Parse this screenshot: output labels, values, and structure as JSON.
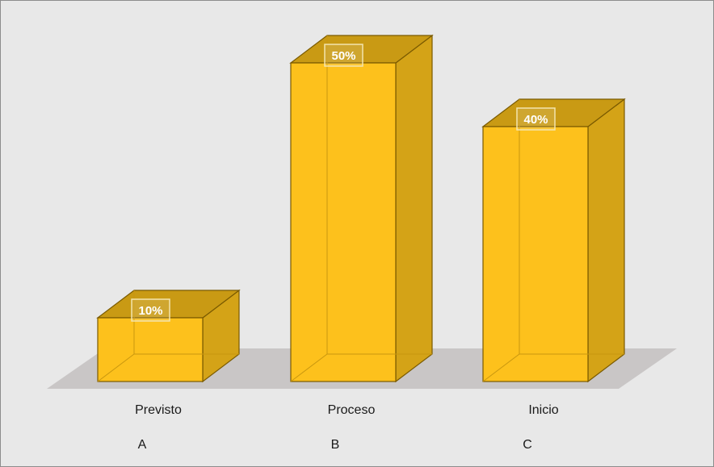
{
  "chart_data": {
    "type": "bar",
    "style": "3d-column",
    "categories": [
      "Previsto",
      "Proceso",
      "Inicio"
    ],
    "sub_labels": [
      "A",
      "B",
      "C"
    ],
    "values": [
      10,
      50,
      40
    ],
    "data_labels": [
      "10%",
      "50%",
      "40%"
    ],
    "unit": "%",
    "ylim": [
      0,
      50
    ],
    "grid": false,
    "legend": "none",
    "title": "",
    "xlabel": "",
    "ylabel": ""
  },
  "colors": {
    "background": "#e8e8e8",
    "border": "#8c8c8c",
    "floor": "#c9c6c6",
    "bar_front": "#fdc11c",
    "bar_side": "#d4a317",
    "bar_top": "#c99a14",
    "bar_edge": "#7a5a00"
  }
}
